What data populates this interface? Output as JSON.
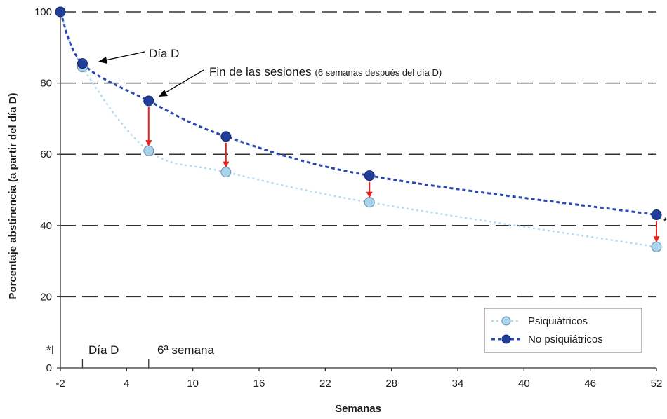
{
  "chart_data": {
    "type": "line",
    "title": "",
    "xlabel": "Semanas",
    "ylabel": "Porcentaje abstinencia (a partir del día D)",
    "xlim": [
      -2,
      52
    ],
    "ylim": [
      0,
      100
    ],
    "x_ticks": [
      -2,
      4,
      10,
      16,
      22,
      28,
      34,
      40,
      46,
      52
    ],
    "y_ticks": [
      0,
      20,
      40,
      60,
      80,
      100
    ],
    "grid": "horizontal dashed",
    "legend_position": "bottom-right",
    "series": [
      {
        "name": "Psiquiátricos",
        "color": "#a9d4ee",
        "line_color": "#b3dcf2",
        "points": [
          [
            -2,
            100
          ],
          [
            0,
            84.5
          ],
          [
            6,
            61
          ],
          [
            13,
            55
          ],
          [
            26,
            46.5
          ],
          [
            52,
            34
          ]
        ]
      },
      {
        "name": "No psiquiátricos",
        "color": "#1f3d99",
        "line_color": "#2a48b4",
        "points": [
          [
            -2,
            100
          ],
          [
            0,
            85.5
          ],
          [
            6,
            75
          ],
          [
            13,
            65
          ],
          [
            26,
            54
          ],
          [
            52,
            43
          ]
        ]
      }
    ],
    "drop_arrows": [
      6,
      13,
      26,
      52
    ],
    "drop_arrow_color": "#e8231f",
    "annotations": {
      "dia_d": "Día D",
      "fin_main": "Fin de las sesiones",
      "fin_paren": "(6 semanas después del día D)",
      "axis_marks": [
        "*I",
        "Día D",
        "6ª semana"
      ],
      "asterisk": "*"
    }
  }
}
